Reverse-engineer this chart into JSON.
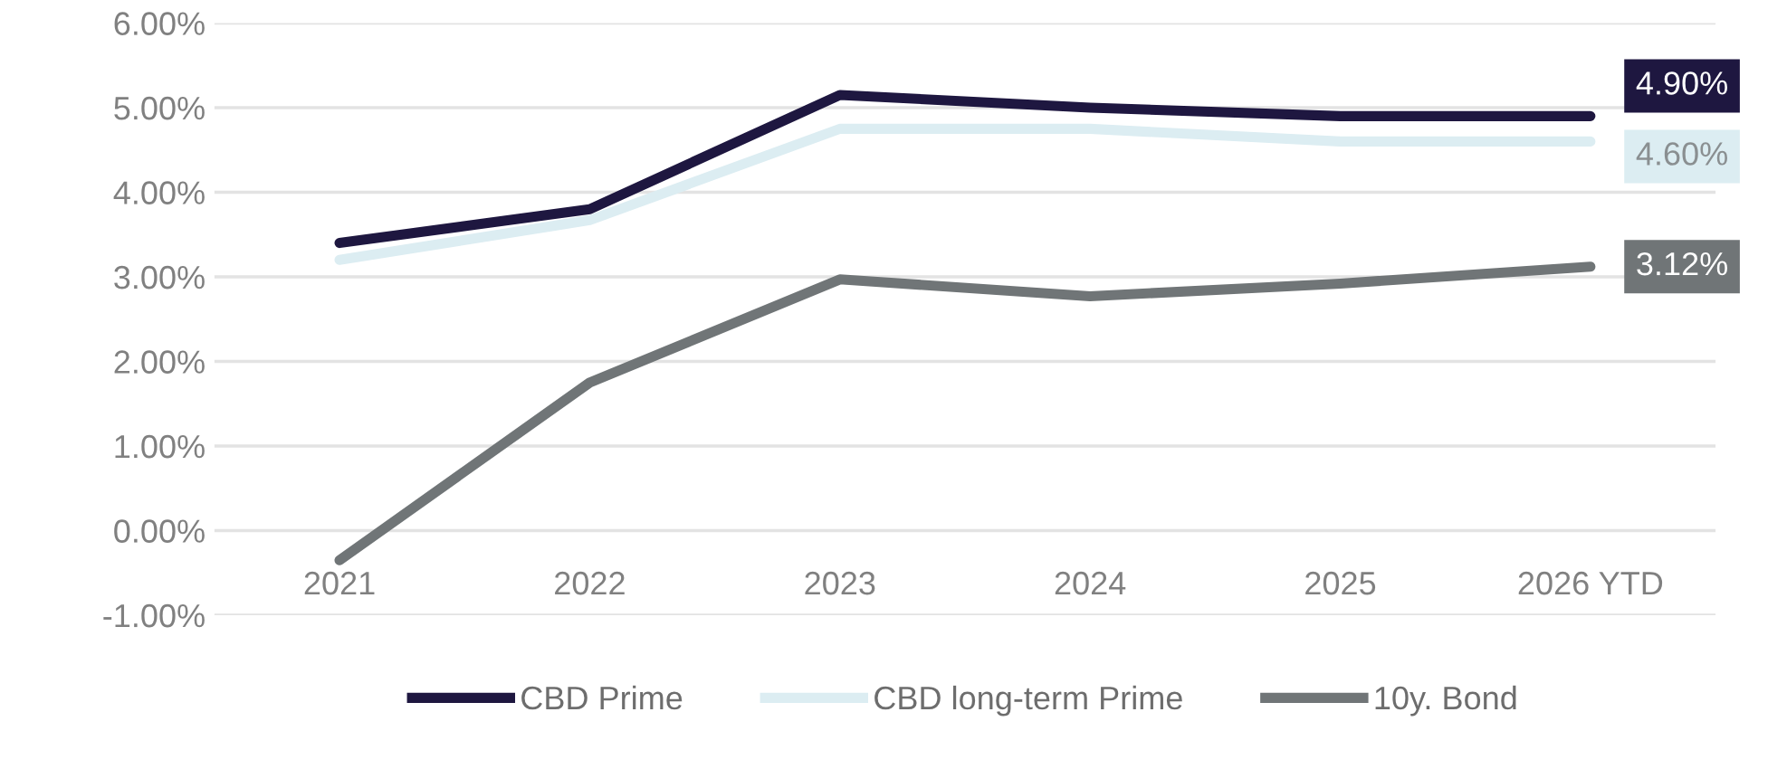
{
  "chart_data": {
    "type": "line",
    "categories": [
      "2021",
      "2022",
      "2023",
      "2024",
      "2025",
      "2026 YTD"
    ],
    "series": [
      {
        "name": "CBD Prime",
        "color": "#1e1740",
        "values": [
          3.4,
          3.8,
          5.15,
          5.0,
          4.9,
          4.9
        ],
        "value_labels": [
          null,
          null,
          null,
          null,
          null,
          "4.90%"
        ]
      },
      {
        "name": "CBD long-term Prime",
        "color": "#dcedf2",
        "values": [
          3.2,
          3.67,
          4.75,
          4.75,
          4.6,
          4.6
        ],
        "value_labels": [
          null,
          null,
          null,
          null,
          null,
          "4.60%"
        ]
      },
      {
        "name": "10y. Bond",
        "color": "#707577",
        "values": [
          -0.35,
          1.75,
          2.97,
          2.77,
          2.92,
          3.12
        ],
        "value_labels": [
          null,
          null,
          null,
          null,
          null,
          "3.12%"
        ]
      }
    ],
    "ylim": [
      -1,
      6
    ],
    "yticks": [
      {
        "value": -1,
        "label": "-1.00%"
      },
      {
        "value": 0,
        "label": "0.00%"
      },
      {
        "value": 1,
        "label": "1.00%"
      },
      {
        "value": 2,
        "label": "2.00%"
      },
      {
        "value": 3,
        "label": "3.00%"
      },
      {
        "value": 4,
        "label": "4.00%"
      },
      {
        "value": 5,
        "label": "5.00%"
      },
      {
        "value": 6,
        "label": "6.00%"
      }
    ],
    "grid": "y",
    "legend": "bottom",
    "marker": "none",
    "line_style": "solid"
  }
}
